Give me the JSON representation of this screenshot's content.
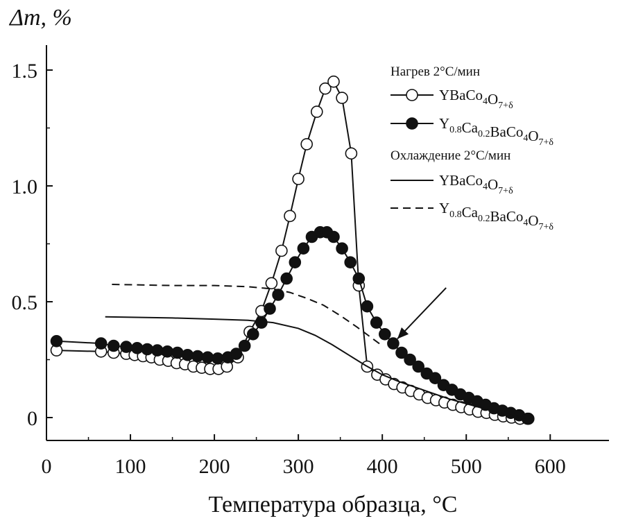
{
  "chart_data": {
    "type": "line",
    "ylabel": "Δm, %",
    "xlabel": "Температура образца, °С",
    "xlim": [
      0,
      670
    ],
    "ylim": [
      -0.1,
      1.6
    ],
    "x_ticks": [
      0,
      100,
      200,
      300,
      400,
      500,
      600
    ],
    "x_tick_labels": [
      "0",
      "100",
      "200",
      "300",
      "400",
      "500",
      "600"
    ],
    "y_ticks": [
      0,
      0.5,
      1.0,
      1.5
    ],
    "y_tick_labels": [
      "0",
      "0.5",
      "1.0",
      "1.5"
    ],
    "legend": {
      "position": "top-right",
      "heating_header": "Нагрев 2°С/мин",
      "cooling_header": "Охлаждение 2°С/мин"
    },
    "series": [
      {
        "name": "YBaCo4O7+δ",
        "formula": [
          {
            "t": "YBaCo"
          },
          {
            "s": "4"
          },
          {
            "t": "O"
          },
          {
            "s": "7+δ"
          }
        ],
        "group": "heating",
        "style": "open-circles",
        "color": "#111111",
        "x": [
          12,
          65,
          80,
          95,
          105,
          115,
          125,
          135,
          145,
          155,
          165,
          175,
          185,
          195,
          205,
          215,
          228,
          242,
          256,
          268,
          280,
          290,
          300,
          310,
          322,
          332,
          342,
          352,
          363,
          372,
          382,
          394,
          404,
          414,
          424,
          434,
          444,
          454,
          464,
          474,
          484,
          494,
          504,
          514,
          524,
          534,
          544,
          554,
          564,
          574
        ],
        "y": [
          0.29,
          0.285,
          0.28,
          0.275,
          0.27,
          0.265,
          0.26,
          0.25,
          0.245,
          0.235,
          0.23,
          0.22,
          0.215,
          0.21,
          0.21,
          0.22,
          0.26,
          0.37,
          0.46,
          0.58,
          0.72,
          0.87,
          1.03,
          1.18,
          1.32,
          1.42,
          1.45,
          1.38,
          1.14,
          0.57,
          0.22,
          0.185,
          0.165,
          0.145,
          0.13,
          0.115,
          0.1,
          0.085,
          0.075,
          0.065,
          0.055,
          0.045,
          0.035,
          0.025,
          0.02,
          0.012,
          0.005,
          0.0,
          -0.005,
          -0.005
        ]
      },
      {
        "name": "Y0.8Ca0.2BaCo4O7+δ",
        "formula": [
          {
            "t": "Y"
          },
          {
            "s": "0.8"
          },
          {
            "t": "Ca"
          },
          {
            "s": "0.2"
          },
          {
            "t": "BaCo"
          },
          {
            "s": "4"
          },
          {
            "t": "O"
          },
          {
            "s": "7+δ"
          }
        ],
        "group": "heating",
        "style": "filled-circles",
        "color": "#111111",
        "x": [
          12,
          65,
          80,
          95,
          108,
          120,
          132,
          144,
          156,
          168,
          180,
          192,
          204,
          216,
          226,
          236,
          246,
          256,
          266,
          276,
          286,
          296,
          306,
          316,
          326,
          334,
          342,
          352,
          362,
          372,
          382,
          393,
          403,
          413,
          423,
          433,
          443,
          453,
          463,
          473,
          483,
          493,
          503,
          513,
          523,
          533,
          543,
          553,
          563,
          573
        ],
        "y": [
          0.33,
          0.32,
          0.31,
          0.305,
          0.3,
          0.295,
          0.29,
          0.285,
          0.28,
          0.27,
          0.265,
          0.26,
          0.255,
          0.26,
          0.275,
          0.31,
          0.36,
          0.41,
          0.47,
          0.53,
          0.6,
          0.67,
          0.73,
          0.78,
          0.8,
          0.8,
          0.78,
          0.73,
          0.67,
          0.6,
          0.48,
          0.41,
          0.36,
          0.32,
          0.28,
          0.25,
          0.22,
          0.19,
          0.17,
          0.14,
          0.12,
          0.1,
          0.085,
          0.07,
          0.055,
          0.04,
          0.03,
          0.02,
          0.01,
          -0.005
        ]
      },
      {
        "name": "YBaCo4O7+δ",
        "formula": [
          {
            "t": "YBaCo"
          },
          {
            "s": "4"
          },
          {
            "t": "O"
          },
          {
            "s": "7+δ"
          }
        ],
        "group": "cooling",
        "style": "solid",
        "color": "#111111",
        "x": [
          70,
          150,
          200,
          240,
          270,
          300,
          320,
          340,
          360,
          380,
          400,
          420,
          440,
          460,
          480,
          500,
          520,
          540,
          560,
          575
        ],
        "y": [
          0.435,
          0.43,
          0.425,
          0.42,
          0.41,
          0.385,
          0.355,
          0.315,
          0.27,
          0.225,
          0.185,
          0.155,
          0.13,
          0.105,
          0.08,
          0.06,
          0.04,
          0.02,
          0.005,
          -0.005
        ]
      },
      {
        "name": "Y0.8Ca0.2BaCo4O7+δ",
        "formula": [
          {
            "t": "Y"
          },
          {
            "s": "0.8"
          },
          {
            "t": "Ca"
          },
          {
            "s": "0.2"
          },
          {
            "t": "BaCo"
          },
          {
            "s": "4"
          },
          {
            "t": "O"
          },
          {
            "s": "7+δ"
          }
        ],
        "group": "cooling",
        "style": "dashed",
        "color": "#111111",
        "x": [
          78,
          150,
          200,
          240,
          270,
          290,
          310,
          330,
          350,
          370,
          385,
          400
        ],
        "y": [
          0.575,
          0.57,
          0.57,
          0.565,
          0.555,
          0.54,
          0.515,
          0.485,
          0.44,
          0.39,
          0.35,
          0.31
        ]
      }
    ],
    "annotation": {
      "type": "arrow",
      "from": [
        476,
        0.56
      ],
      "to": [
        418,
        0.34
      ]
    }
  }
}
